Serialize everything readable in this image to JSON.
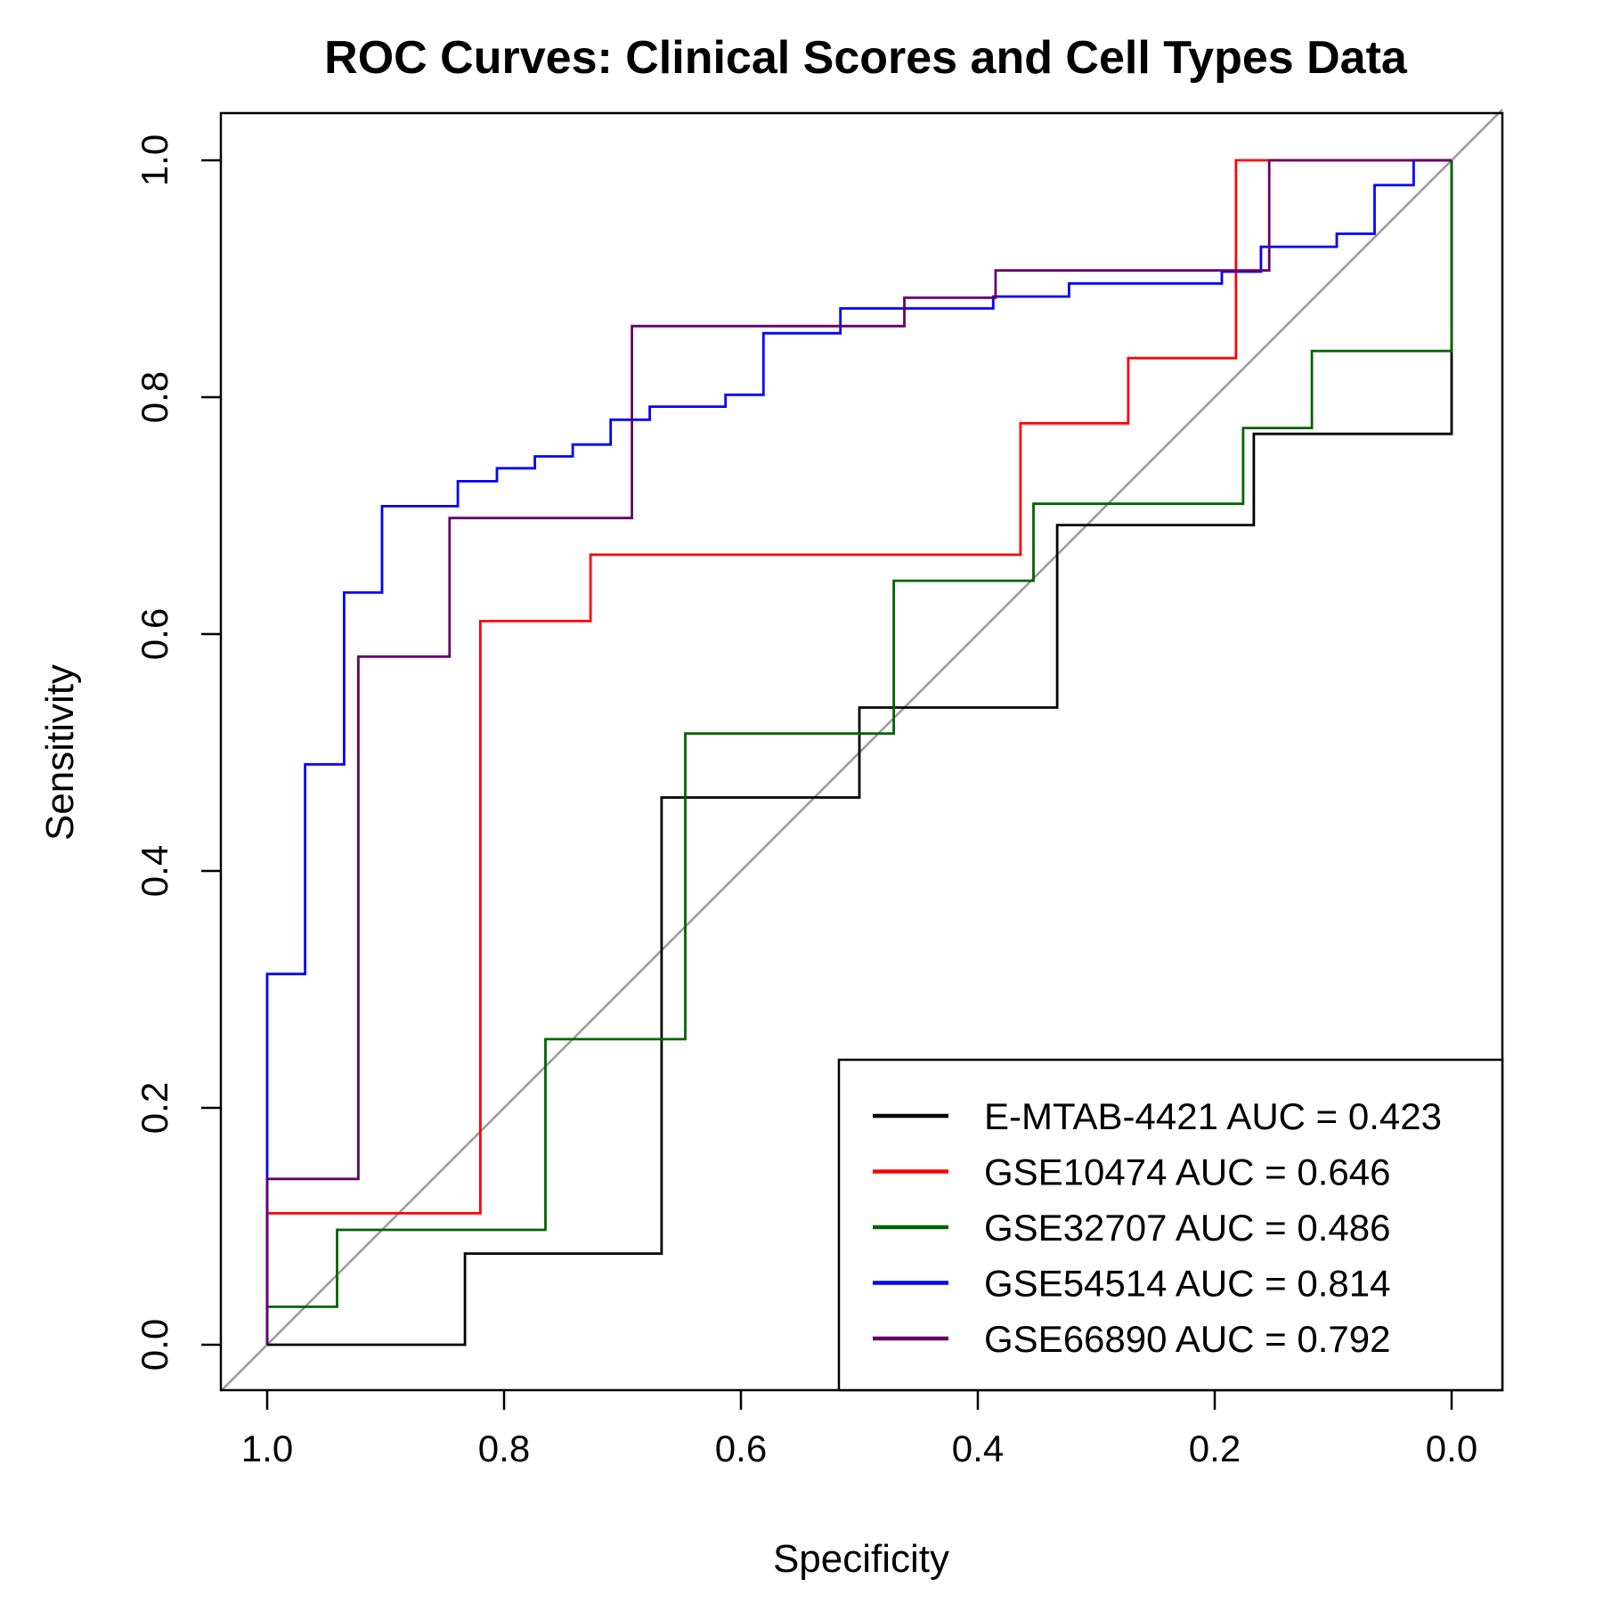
{
  "chart_data": {
    "type": "line",
    "title": "ROC Curves: Clinical Scores and Cell Types Data",
    "xlabel": "Specificity",
    "ylabel": "Sensitivity",
    "xlim": [
      1.0,
      0.0
    ],
    "ylim": [
      0.0,
      1.0
    ],
    "x_ticks": [
      "1.0",
      "0.8",
      "0.6",
      "0.4",
      "0.2",
      "0.0"
    ],
    "y_ticks": [
      "0.0",
      "0.2",
      "0.4",
      "0.6",
      "0.8",
      "1.0"
    ],
    "reference_line": {
      "color": "#999999"
    },
    "legend_position": "bottom-right",
    "series": [
      {
        "name": "E-MTAB-4421 AUC = 0.423",
        "color": "#000000",
        "x": [
          1.0,
          0.833,
          0.833,
          0.667,
          0.667,
          0.5,
          0.5,
          0.333,
          0.333,
          0.167,
          0.167,
          0.0,
          0.0
        ],
        "y": [
          0.0,
          0.0,
          0.077,
          0.077,
          0.462,
          0.462,
          0.538,
          0.538,
          0.692,
          0.692,
          0.769,
          0.769,
          1.0
        ]
      },
      {
        "name": "GSE10474 AUC = 0.646",
        "color": "#ff0000",
        "x": [
          1.0,
          1.0,
          0.82,
          0.82,
          0.727,
          0.727,
          0.364,
          0.364,
          0.273,
          0.273,
          0.182,
          0.182,
          0.0
        ],
        "y": [
          0.0,
          0.111,
          0.111,
          0.611,
          0.611,
          0.667,
          0.667,
          0.778,
          0.778,
          0.833,
          0.833,
          1.0,
          1.0
        ]
      },
      {
        "name": "GSE32707 AUC = 0.486",
        "color": "#006400",
        "x": [
          1.0,
          1.0,
          0.941,
          0.941,
          0.765,
          0.765,
          0.647,
          0.647,
          0.471,
          0.471,
          0.353,
          0.353,
          0.176,
          0.176,
          0.118,
          0.118,
          0.0,
          0.0
        ],
        "y": [
          0.0,
          0.032,
          0.032,
          0.097,
          0.097,
          0.258,
          0.258,
          0.516,
          0.516,
          0.645,
          0.645,
          0.71,
          0.71,
          0.774,
          0.774,
          0.839,
          0.839,
          1.0
        ]
      },
      {
        "name": "GSE54514 AUC = 0.814",
        "color": "#0000ff",
        "x": [
          1.0,
          1.0,
          0.968,
          0.968,
          0.935,
          0.935,
          0.903,
          0.903,
          0.839,
          0.839,
          0.806,
          0.806,
          0.774,
          0.774,
          0.742,
          0.742,
          0.71,
          0.71,
          0.677,
          0.677,
          0.613,
          0.613,
          0.581,
          0.581,
          0.516,
          0.516,
          0.387,
          0.387,
          0.323,
          0.323,
          0.194,
          0.194,
          0.161,
          0.161,
          0.097,
          0.097,
          0.065,
          0.065,
          0.032,
          0.032,
          0.0
        ],
        "y": [
          0.0,
          0.313,
          0.313,
          0.49,
          0.49,
          0.635,
          0.635,
          0.708,
          0.708,
          0.729,
          0.729,
          0.74,
          0.74,
          0.75,
          0.75,
          0.76,
          0.76,
          0.781,
          0.781,
          0.792,
          0.792,
          0.802,
          0.802,
          0.854,
          0.854,
          0.875,
          0.875,
          0.885,
          0.885,
          0.896,
          0.896,
          0.906,
          0.906,
          0.927,
          0.927,
          0.938,
          0.938,
          0.979,
          0.979,
          1.0,
          1.0
        ]
      },
      {
        "name": "GSE66890 AUC = 0.792",
        "color": "#660066",
        "x": [
          1.0,
          1.0,
          0.923,
          0.923,
          0.846,
          0.846,
          0.692,
          0.692,
          0.462,
          0.462,
          0.385,
          0.385,
          0.154,
          0.154,
          0.0
        ],
        "y": [
          0.0,
          0.14,
          0.14,
          0.581,
          0.581,
          0.698,
          0.698,
          0.86,
          0.86,
          0.884,
          0.884,
          0.907,
          0.907,
          1.0,
          1.0
        ]
      }
    ]
  }
}
